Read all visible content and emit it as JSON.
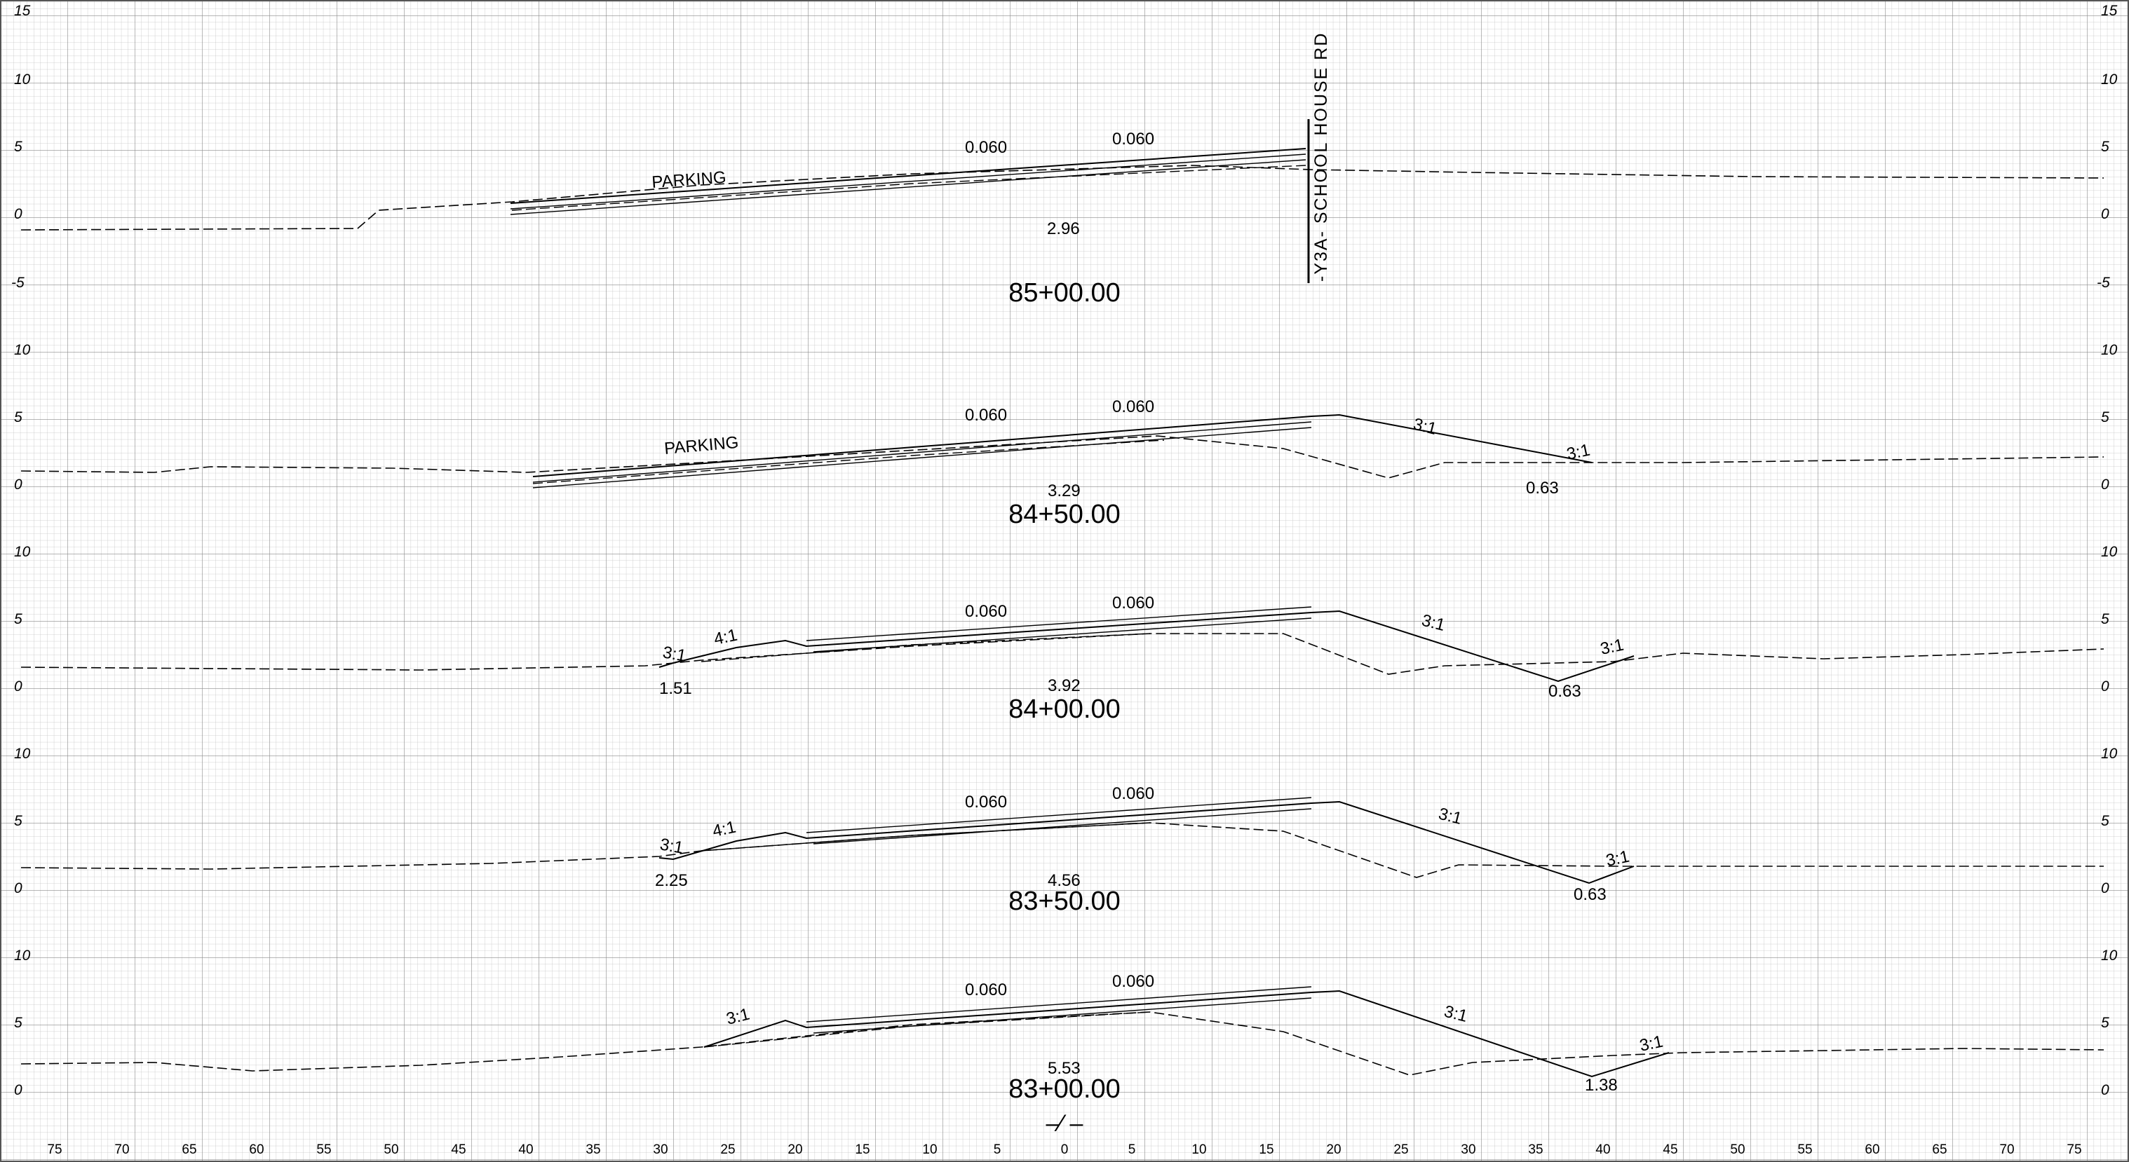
{
  "sheet": {
    "elevation_labels_left": [
      "15",
      "10",
      "5",
      "0",
      "-5",
      "10",
      "5",
      "0",
      "10",
      "5",
      "0",
      "10",
      "5",
      "0",
      "10",
      "5",
      "0"
    ],
    "elevation_labels_right": [
      "15",
      "10",
      "5",
      "0",
      "-5",
      "10",
      "5",
      "0",
      "10",
      "5",
      "0",
      "10",
      "5",
      "0",
      "10",
      "5",
      "0"
    ],
    "offset_labels": [
      "75",
      "70",
      "65",
      "60",
      "55",
      "50",
      "45",
      "40",
      "35",
      "30",
      "25",
      "20",
      "15",
      "10",
      "5",
      "0",
      "5",
      "10",
      "15",
      "20",
      "25",
      "30",
      "35",
      "40",
      "45",
      "50",
      "55",
      "60",
      "65",
      "70",
      "75"
    ],
    "centerline_label": "–⁄ –",
    "road_label": "-Y3A- SCHOOL HOUSE RD"
  },
  "sections": [
    {
      "station": "85+00.00",
      "grade_value": "2.96",
      "slope_left": "0.060",
      "slope_right": "0.060",
      "parking": "PARKING",
      "slope_labels": [],
      "depth_labels": []
    },
    {
      "station": "84+50.00",
      "grade_value": "3.29",
      "slope_left": "0.060",
      "slope_right": "0.060",
      "parking": "PARKING",
      "slope_labels": [
        "3:1",
        "3:1"
      ],
      "depth_labels": [
        "0.63"
      ]
    },
    {
      "station": "84+00.00",
      "grade_value": "3.92",
      "slope_left": "0.060",
      "slope_right": "0.060",
      "parking": "",
      "slope_labels": [
        "3:1",
        "4:1",
        "3:1",
        "3:1"
      ],
      "depth_labels": [
        "1.51",
        "0.63"
      ]
    },
    {
      "station": "83+50.00",
      "grade_value": "4.56",
      "slope_left": "0.060",
      "slope_right": "0.060",
      "parking": "",
      "slope_labels": [
        "3:1",
        "4:1",
        "3:1",
        "3:1"
      ],
      "depth_labels": [
        "2.25",
        "0.63"
      ]
    },
    {
      "station": "83+00.00",
      "grade_value": "5.53",
      "slope_left": "0.060",
      "slope_right": "0.060",
      "parking": "",
      "slope_labels": [
        "3:1",
        "3:1",
        "3:1"
      ],
      "depth_labels": [
        "1.38"
      ]
    }
  ]
}
